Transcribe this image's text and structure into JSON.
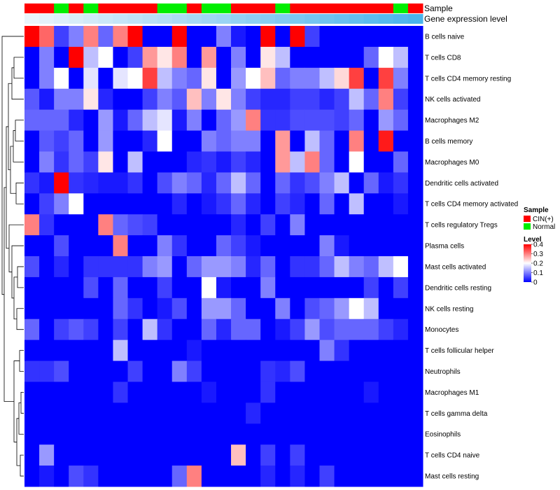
{
  "chart_data": {
    "type": "heatmap",
    "annotation_labels": [
      "Sample",
      "Gene expression level"
    ],
    "rows": [
      "B cells naive",
      "T cells CD8",
      "T cells CD4 memory resting",
      "NK cells activated",
      "Macrophages M2",
      "B cells memory",
      "Macrophages M0",
      "Dendritic cells activated",
      "T cells CD4 memory activated",
      "T cells regulatory  Tregs",
      "Plasma cells",
      "Mast cells activated",
      "Dendritic cells resting",
      "NK cells resting",
      "Monocytes",
      "T cells follicular helper",
      "Neutrophils",
      "Macrophages M1",
      "T cells gamma delta",
      "Eosinophils",
      "T cells CD4 naive",
      "Mast cells resting"
    ],
    "sample_groups": [
      "CIN",
      "CIN",
      "N",
      "CIN",
      "N",
      "CIN",
      "CIN",
      "CIN",
      "CIN",
      "N",
      "N",
      "CIN",
      "N",
      "N",
      "CIN",
      "CIN",
      "CIN",
      "N",
      "CIN",
      "CIN",
      "CIN",
      "CIN",
      "CIN",
      "CIN",
      "CIN",
      "N",
      "CIN"
    ],
    "values": [
      [
        0.4,
        0.32,
        0.05,
        0.1,
        0.3,
        0.08,
        0.3,
        0.4,
        0,
        0,
        0.4,
        0,
        0,
        0.1,
        0.02,
        0,
        0.4,
        0,
        0.4,
        0.05,
        0,
        0,
        0,
        0,
        0,
        0,
        0
      ],
      [
        0,
        0.1,
        0,
        0.4,
        0.15,
        0.2,
        0,
        0.05,
        0.28,
        0.22,
        0.3,
        0,
        0.28,
        0,
        0.1,
        0,
        0.22,
        0.15,
        0,
        0,
        0,
        0,
        0,
        0.08,
        0.2,
        0.15,
        0
      ],
      [
        0,
        0.1,
        0.2,
        0,
        0.18,
        0,
        0.18,
        0.2,
        0.35,
        0.15,
        0.1,
        0.08,
        0.22,
        0,
        0.12,
        0.2,
        0.25,
        0.08,
        0.1,
        0.1,
        0.15,
        0.23,
        0.35,
        0,
        0.35,
        0.1,
        0
      ],
      [
        0.07,
        0.02,
        0.1,
        0.1,
        0.22,
        0.03,
        0,
        0,
        0.05,
        0.1,
        0.07,
        0.25,
        0.1,
        0.22,
        0.1,
        0.05,
        0.03,
        0.03,
        0.05,
        0.05,
        0.03,
        0.05,
        0.15,
        0.08,
        0.3,
        0.05,
        0
      ],
      [
        0.08,
        0.08,
        0.08,
        0.03,
        0,
        0.12,
        0.02,
        0.08,
        0.15,
        0.18,
        0.02,
        0.1,
        0,
        0.08,
        0.12,
        0.3,
        0.04,
        0.04,
        0.06,
        0.06,
        0.06,
        0.05,
        0.08,
        0,
        0.12,
        0.08,
        0
      ],
      [
        0,
        0.07,
        0.05,
        0.08,
        0,
        0.12,
        0,
        0,
        0.03,
        0.2,
        0,
        0,
        0.1,
        0.08,
        0.1,
        0.1,
        0,
        0.28,
        0,
        0.15,
        0.08,
        0,
        0.3,
        0,
        0.38,
        0,
        0
      ],
      [
        0,
        0.1,
        0.04,
        0.08,
        0.05,
        0.22,
        0,
        0.15,
        0,
        0,
        0,
        0.03,
        0.04,
        0.02,
        0.05,
        0.03,
        0,
        0.28,
        0.15,
        0.3,
        0.08,
        0,
        0.2,
        0,
        0,
        0.08,
        0
      ],
      [
        0.04,
        0.02,
        0.4,
        0.04,
        0.03,
        0.02,
        0.02,
        0.04,
        0,
        0.06,
        0.1,
        0.08,
        0.03,
        0.08,
        0.15,
        0.08,
        0,
        0.08,
        0.04,
        0.06,
        0.1,
        0.15,
        0,
        0.08,
        0.02,
        0.04,
        0
      ],
      [
        0,
        0.05,
        0.1,
        0.2,
        0,
        0,
        0,
        0,
        0,
        0,
        0.03,
        0,
        0.02,
        0.04,
        0.08,
        0.03,
        0,
        0.05,
        0.03,
        0,
        0.08,
        0,
        0.15,
        0,
        0,
        0.02,
        0
      ],
      [
        0.3,
        0.04,
        0,
        0,
        0,
        0.3,
        0.08,
        0.06,
        0.05,
        0,
        0,
        0,
        0,
        0,
        0.03,
        0,
        0.05,
        0,
        0.1,
        0,
        0,
        0,
        0,
        0,
        0,
        0,
        0
      ],
      [
        0,
        0,
        0.06,
        0,
        0,
        0,
        0.3,
        0,
        0,
        0.1,
        0.04,
        0,
        0,
        0.08,
        0.05,
        0.02,
        0,
        0,
        0,
        0,
        0.1,
        0.02,
        0,
        0,
        0,
        0,
        0
      ],
      [
        0.06,
        0,
        0.03,
        0,
        0.04,
        0.04,
        0.04,
        0.04,
        0.1,
        0.12,
        0,
        0.08,
        0.12,
        0.12,
        0.1,
        0.03,
        0.08,
        0,
        0.04,
        0.04,
        0.08,
        0.15,
        0.1,
        0.08,
        0.15,
        0.2,
        0
      ],
      [
        0,
        0,
        0,
        0,
        0.06,
        0,
        0.08,
        0,
        0,
        0.05,
        0,
        0,
        0.2,
        0.02,
        0,
        0,
        0.1,
        0,
        0,
        0,
        0,
        0,
        0,
        0.05,
        0,
        0.05,
        0
      ],
      [
        0,
        0,
        0,
        0,
        0,
        0,
        0.08,
        0.04,
        0,
        0.02,
        0.06,
        0,
        0.12,
        0.12,
        0.08,
        0,
        0,
        0.1,
        0,
        0.06,
        0.08,
        0.12,
        0.2,
        0.15,
        0,
        0,
        0
      ],
      [
        0.08,
        0,
        0.05,
        0.07,
        0.05,
        0,
        0.05,
        0,
        0.15,
        0.04,
        0,
        0,
        0.08,
        0.03,
        0.08,
        0.08,
        0,
        0.02,
        0.05,
        0.12,
        0.06,
        0.08,
        0.08,
        0.08,
        0.05,
        0.03,
        0
      ],
      [
        0,
        0,
        0,
        0,
        0,
        0,
        0.15,
        0,
        0,
        0,
        0,
        0.02,
        0,
        0,
        0,
        0,
        0,
        0,
        0,
        0,
        0.1,
        0.04,
        0,
        0,
        0,
        0,
        0
      ],
      [
        0.04,
        0.04,
        0.06,
        0,
        0,
        0,
        0,
        0.05,
        0,
        0,
        0.1,
        0.05,
        0,
        0,
        0,
        0,
        0.04,
        0.03,
        0.06,
        0,
        0,
        0,
        0,
        0,
        0,
        0,
        0
      ],
      [
        0,
        0,
        0,
        0,
        0,
        0,
        0.04,
        0,
        0,
        0,
        0,
        0,
        0.02,
        0,
        0,
        0,
        0.04,
        0,
        0,
        0,
        0,
        0,
        0,
        0.02,
        0,
        0,
        0
      ],
      [
        0,
        0,
        0,
        0,
        0,
        0,
        0,
        0,
        0,
        0,
        0,
        0,
        0,
        0,
        0,
        0.03,
        0,
        0,
        0,
        0,
        0,
        0,
        0,
        0,
        0,
        0,
        0
      ],
      [
        0,
        0,
        0,
        0,
        0,
        0,
        0,
        0,
        0,
        0,
        0,
        0,
        0,
        0,
        0,
        0,
        0,
        0,
        0,
        0,
        0,
        0,
        0,
        0,
        0,
        0,
        0
      ],
      [
        0,
        0.12,
        0,
        0,
        0,
        0,
        0,
        0,
        0,
        0,
        0,
        0,
        0,
        0,
        0.25,
        0,
        0.05,
        0,
        0.05,
        0,
        0,
        0,
        0,
        0,
        0,
        0,
        0
      ],
      [
        0,
        0.02,
        0,
        0.06,
        0.04,
        0,
        0,
        0,
        0,
        0,
        0.08,
        0.3,
        0,
        0,
        0,
        0,
        0.03,
        0,
        0.03,
        0,
        0.05,
        0,
        0,
        0,
        0,
        0,
        0
      ]
    ],
    "sample_colors": {
      "CIN": "#ff0000",
      "N": "#00ee00"
    },
    "expression_gradient": [
      "#eaf4fb",
      "#4ab4ec"
    ],
    "scale": {
      "min": 0,
      "max": 0.4,
      "low": "#0000ff",
      "mid": "#ffffff",
      "high": "#ff0000",
      "ticks": [
        "0.4",
        "0.3",
        "0.2",
        "0.1",
        "0"
      ]
    },
    "legend": {
      "sample_title": "Sample",
      "sample_entries": [
        "CIN(+)",
        "Normal"
      ],
      "level_title": "Level"
    }
  }
}
